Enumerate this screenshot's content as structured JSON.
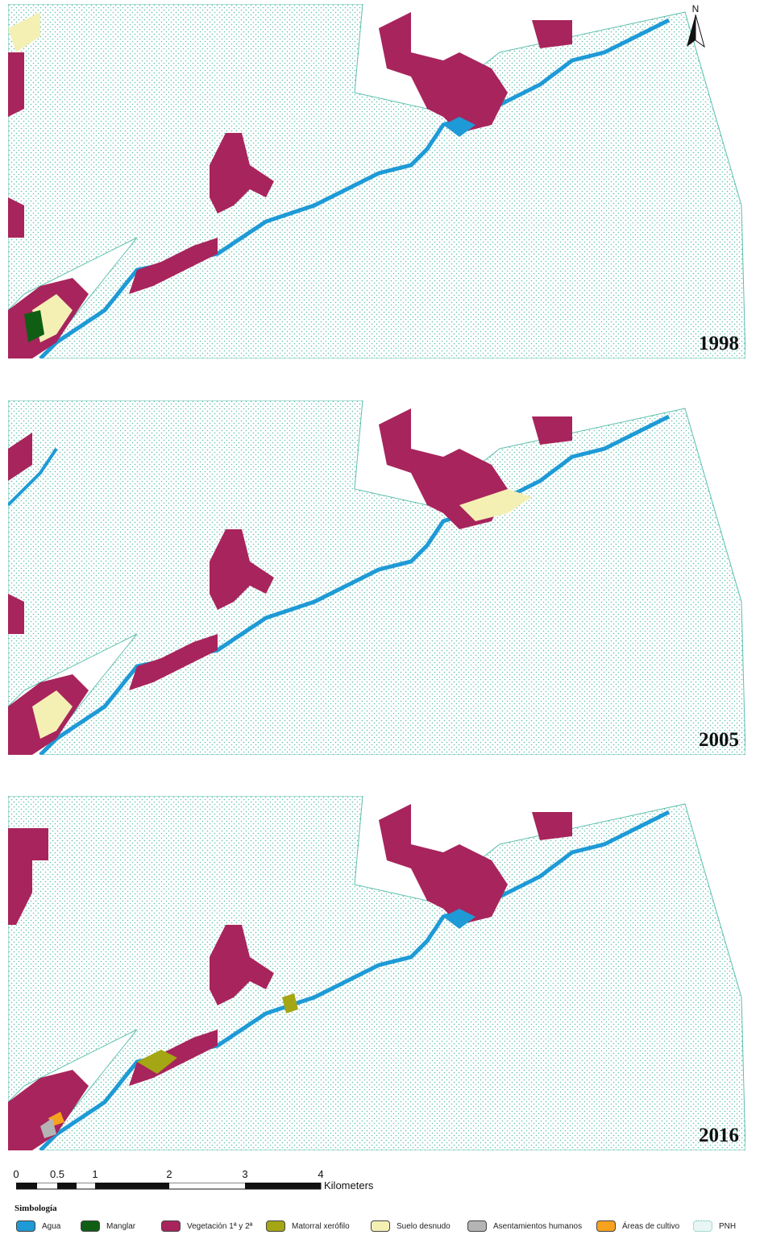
{
  "map": {
    "panels": [
      {
        "year": "1998"
      },
      {
        "year": "2005"
      },
      {
        "year": "2016"
      }
    ],
    "north_label": "N",
    "scale_bar": {
      "ticks": [
        "0",
        "0.5",
        "1",
        "2",
        "3",
        "4"
      ],
      "unit": "Kilometers"
    },
    "legend": {
      "title": "Simbología",
      "items": [
        {
          "label": "Agua",
          "color": "#1e9ad6"
        },
        {
          "label": "Manglar",
          "color": "#0f5e14"
        },
        {
          "label": "Vegetación 1ª y 2ª",
          "color": "#a8245c"
        },
        {
          "label": "Matorral xerófilo",
          "color": "#a4a614"
        },
        {
          "label": "Suelo desnudo",
          "color": "#f4f0b4"
        },
        {
          "label": "Asentamientos humanos",
          "color": "#b4b4b4"
        },
        {
          "label": "Áreas de cultivo",
          "color": "#f6a21e"
        },
        {
          "label": "PNH",
          "color": "#e8f6f4"
        }
      ]
    }
  }
}
